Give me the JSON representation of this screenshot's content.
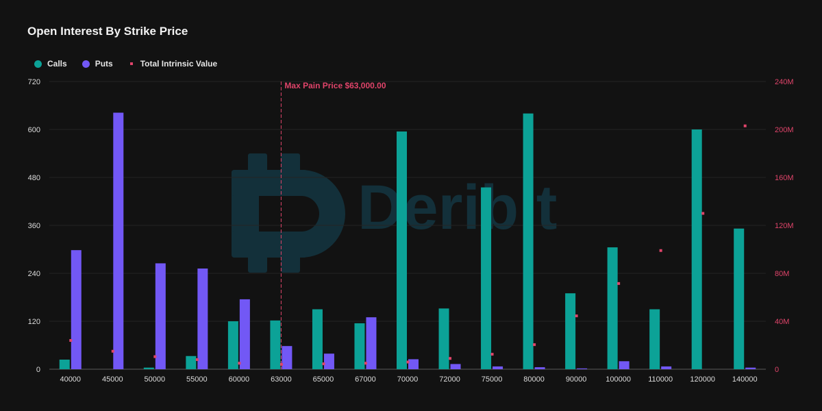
{
  "title": "Open Interest By Strike Price",
  "legend": {
    "calls": "Calls",
    "puts": "Puts",
    "intrinsic": "Total Intrinsic Value"
  },
  "colors": {
    "calls": "#0ca297",
    "puts": "#7258f5",
    "intrinsic": "#e0446a",
    "watermark": "#13303a"
  },
  "watermark": "Deribit",
  "max_pain_label": "Max Pain Price $63,000.00",
  "chart_data": {
    "type": "bar",
    "title": "Open Interest By Strike Price",
    "categories": [
      "40000",
      "45000",
      "50000",
      "55000",
      "60000",
      "63000",
      "65000",
      "67000",
      "70000",
      "72000",
      "75000",
      "80000",
      "90000",
      "100000",
      "110000",
      "120000",
      "140000"
    ],
    "series": [
      {
        "name": "Calls",
        "axis": "left",
        "values": [
          24,
          0,
          4,
          33,
          120,
          122,
          150,
          115,
          595,
          152,
          455,
          640,
          190,
          305,
          150,
          600,
          352
        ]
      },
      {
        "name": "Puts",
        "axis": "left",
        "values": [
          298,
          642,
          265,
          252,
          175,
          58,
          39,
          130,
          25,
          13,
          7,
          5,
          2,
          20,
          7,
          0,
          4
        ]
      },
      {
        "name": "Total Intrinsic Value",
        "axis": "right",
        "type": "scatter",
        "values": [
          24000000,
          15000000,
          10500000,
          8000000,
          5000000,
          4000000,
          4500000,
          5000000,
          6000000,
          9000000,
          12500000,
          20500000,
          44500000,
          71500000,
          99000000,
          130000000,
          203000000
        ]
      }
    ],
    "y_left": {
      "ylim": [
        0,
        720
      ],
      "ticks": [
        "0",
        "120",
        "240",
        "360",
        "480",
        "600",
        "720"
      ]
    },
    "y_right": {
      "ylim": [
        0,
        240000000
      ],
      "ticks": [
        "0",
        "40M",
        "80M",
        "120M",
        "160M",
        "200M",
        "240M"
      ]
    },
    "max_pain_strike": "63000",
    "grid": true,
    "legend_position": "top-left"
  }
}
